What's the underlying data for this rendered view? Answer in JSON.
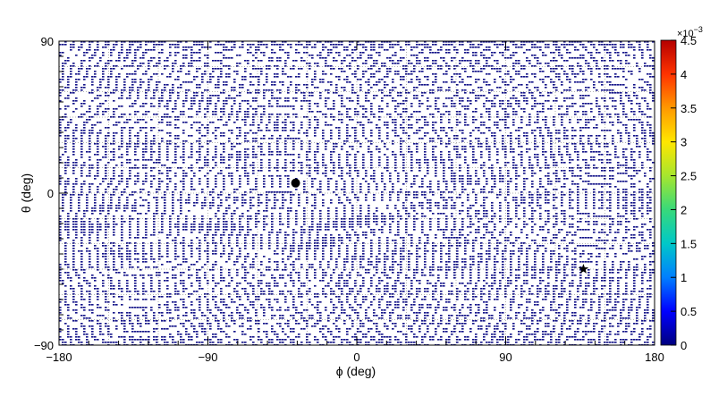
{
  "chart_data": {
    "type": "heatmap",
    "title": "",
    "xlabel": "ϕ (deg)",
    "ylabel": "θ (deg)",
    "xlim": [
      -180,
      180
    ],
    "ylim": [
      -90,
      90
    ],
    "x_ticks": [
      "−180",
      "−90",
      "0",
      "90",
      "180"
    ],
    "x_tick_values": [
      -180,
      -90,
      0,
      90,
      180
    ],
    "y_ticks": [
      "−90",
      "0",
      "90"
    ],
    "y_tick_values": [
      -90,
      0,
      90
    ],
    "grid": true,
    "colorbar": {
      "min": 0,
      "max": 4.5,
      "exponent_label": "×10",
      "exponent": "−3",
      "tick_labels": [
        "0",
        "0.5",
        "1",
        "1.5",
        "2",
        "2.5",
        "3",
        "3.5",
        "4",
        "4.5"
      ],
      "tick_values": [
        0,
        0.5,
        1,
        1.5,
        2,
        2.5,
        3,
        3.5,
        4,
        4.5
      ],
      "colormap": [
        "#00007f",
        "#0000ff",
        "#007fff",
        "#00c8c8",
        "#38d97a",
        "#a6e62e",
        "#ffe600",
        "#ff9900",
        "#ff3300",
        "#b40000"
      ]
    },
    "fringe_color": "#00007f",
    "fringe_centers": [
      {
        "phi": -130,
        "theta": -8
      },
      {
        "phi": -48,
        "theta": -32
      },
      {
        "phi": 55,
        "theta": 10
      },
      {
        "phi": 150,
        "theta": 32
      },
      {
        "phi": 140,
        "theta": -45
      }
    ],
    "markers": [
      {
        "symbol": "circle",
        "phi": -37,
        "theta": 6
      },
      {
        "symbol": "star",
        "phi": 137,
        "theta": -45
      }
    ]
  }
}
